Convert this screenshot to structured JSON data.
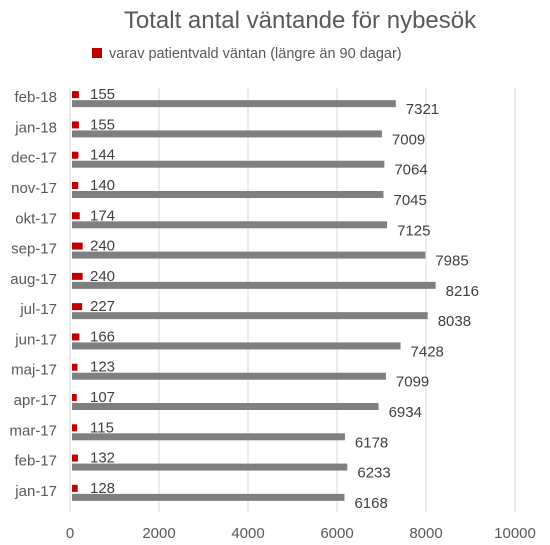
{
  "chart_data": {
    "type": "bar",
    "orientation": "horizontal",
    "title": "Totalt antal väntande för nybesök",
    "xlabel": "",
    "ylabel": "",
    "xlim": [
      0,
      10000
    ],
    "x_ticks": [
      0,
      2000,
      4000,
      6000,
      8000,
      10000
    ],
    "grid": true,
    "legend_position": "top",
    "categories": [
      "jan-17",
      "feb-17",
      "mar-17",
      "apr-17",
      "maj-17",
      "jun-17",
      "jul-17",
      "aug-17",
      "sep-17",
      "okt-17",
      "nov-17",
      "dec-17",
      "jan-18",
      "feb-18"
    ],
    "series": [
      {
        "key": "total",
        "color": "#7f7f7f",
        "values": [
          6168,
          6233,
          6178,
          6934,
          7099,
          7428,
          8038,
          8216,
          7985,
          7125,
          7045,
          7064,
          7009,
          7321
        ]
      },
      {
        "key": "patientvald",
        "name": "varav patientvald väntan (längre än 90 dagar)",
        "color": "#c00000",
        "values": [
          128,
          132,
          115,
          107,
          123,
          166,
          227,
          240,
          240,
          174,
          140,
          144,
          155,
          155
        ]
      }
    ]
  }
}
